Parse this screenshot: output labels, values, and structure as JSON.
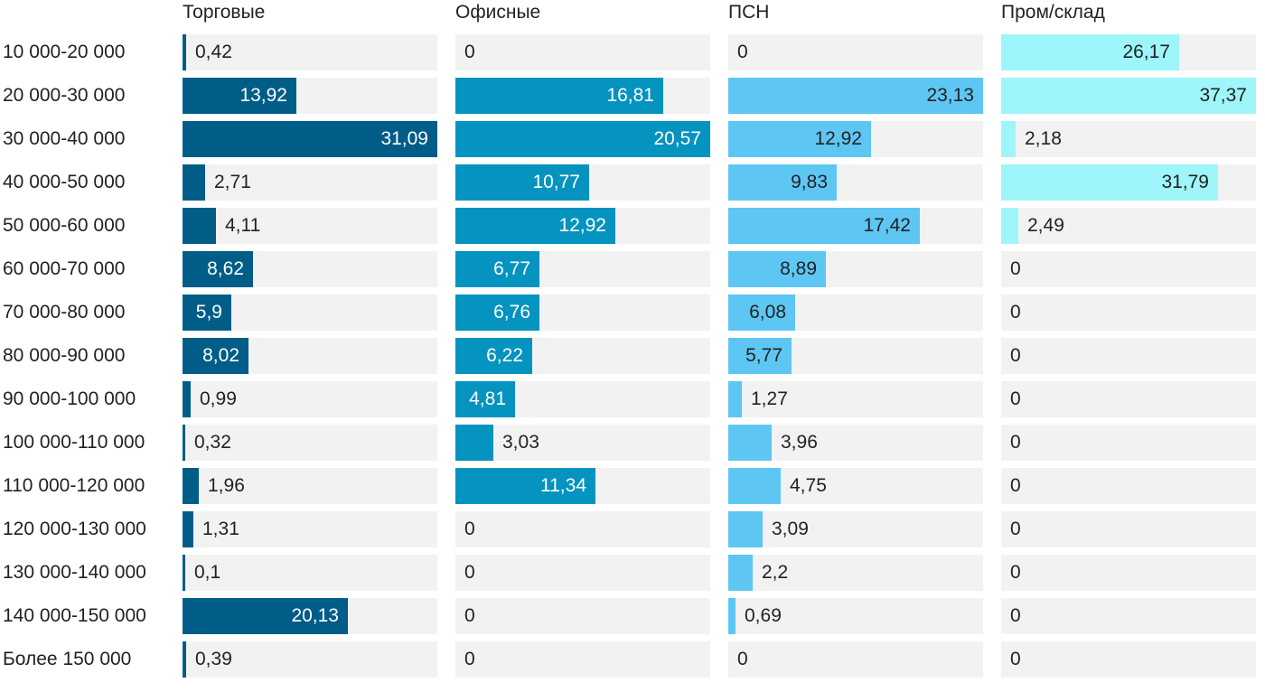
{
  "chart_data": {
    "type": "bar",
    "orientation": "horizontal",
    "layout": "small-multiples",
    "categories": [
      "10 000-20 000",
      "20 000-30 000",
      "30 000-40 000",
      "40 000-50 000",
      "50 000-60 000",
      "60 000-70 000",
      "70 000-80 000",
      "80 000-90 000",
      "90 000-100 000",
      "100 000-110 000",
      "110 000-120 000",
      "120 000-130 000",
      "130 000-140 000",
      "140 000-150 000",
      "Более 150 000"
    ],
    "series": [
      {
        "name": "Торговые",
        "color": "#005d87",
        "xlim": [
          0,
          31.09
        ],
        "values": [
          0.42,
          13.92,
          31.09,
          2.71,
          4.11,
          8.62,
          5.9,
          8.02,
          0.99,
          0.32,
          1.96,
          1.31,
          0.1,
          20.13,
          0.39
        ],
        "labels": [
          "0,42",
          "13,92",
          "31,09",
          "2,71",
          "4,11",
          "8,62",
          "5,9",
          "8,02",
          "0,99",
          "0,32",
          "1,96",
          "1,31",
          "0,1",
          "20,13",
          "0,39"
        ]
      },
      {
        "name": "Офисные",
        "color": "#0593bf",
        "xlim": [
          0,
          20.57
        ],
        "values": [
          0,
          16.81,
          20.57,
          10.77,
          12.92,
          6.77,
          6.76,
          6.22,
          4.81,
          3.03,
          11.34,
          0,
          0,
          0,
          0
        ],
        "labels": [
          "0",
          "16,81",
          "20,57",
          "10,77",
          "12,92",
          "6,77",
          "6,76",
          "6,22",
          "4,81",
          "3,03",
          "11,34",
          "0",
          "0",
          "0",
          "0"
        ]
      },
      {
        "name": "ПСН",
        "color": "#5ec6f3",
        "xlim": [
          0,
          23.13
        ],
        "values": [
          0,
          23.13,
          12.92,
          9.83,
          17.42,
          8.89,
          6.08,
          5.77,
          1.27,
          3.96,
          4.75,
          3.09,
          2.2,
          0.69,
          0
        ],
        "labels": [
          "0",
          "23,13",
          "12,92",
          "9,83",
          "17,42",
          "8,89",
          "6,08",
          "5,77",
          "1,27",
          "3,96",
          "4,75",
          "3,09",
          "2,2",
          "0,69",
          "0"
        ]
      },
      {
        "name": "Пром/склад",
        "color": "#9ef6fa",
        "xlim": [
          0,
          37.37
        ],
        "values": [
          26.17,
          37.37,
          2.18,
          31.79,
          2.49,
          0,
          0,
          0,
          0,
          0,
          0,
          0,
          0,
          0,
          0
        ],
        "labels": [
          "26,17",
          "37,37",
          "2,18",
          "31,79",
          "2,49",
          "0",
          "0",
          "0",
          "0",
          "0",
          "0",
          "0",
          "0",
          "0",
          "0"
        ]
      }
    ]
  }
}
